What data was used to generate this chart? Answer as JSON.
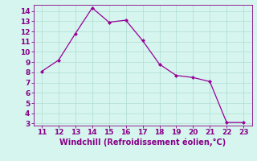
{
  "x": [
    11,
    12,
    13,
    14,
    15,
    16,
    17,
    18,
    19,
    20,
    21,
    22,
    23
  ],
  "y": [
    8.1,
    9.2,
    11.8,
    14.3,
    12.9,
    13.1,
    11.1,
    8.8,
    7.7,
    7.5,
    7.1,
    3.1,
    3.1
  ],
  "line_color": "#990099",
  "marker": "D",
  "marker_size": 2.0,
  "bg_color": "#d5f5ee",
  "grid_color": "#b0ddd0",
  "xlabel": "Windchill (Refroidissement éolien,°C)",
  "xlabel_color": "#880088",
  "tick_color": "#880088",
  "spine_color": "#880088",
  "ylim_min": 2.8,
  "ylim_max": 14.6,
  "xlim_min": 10.5,
  "xlim_max": 23.5,
  "yticks": [
    3,
    4,
    5,
    6,
    7,
    8,
    9,
    10,
    11,
    12,
    13,
    14
  ],
  "xticks": [
    11,
    12,
    13,
    14,
    15,
    16,
    17,
    18,
    19,
    20,
    21,
    22,
    23
  ],
  "tick_fontsize": 6.5,
  "xlabel_fontsize": 7.0
}
